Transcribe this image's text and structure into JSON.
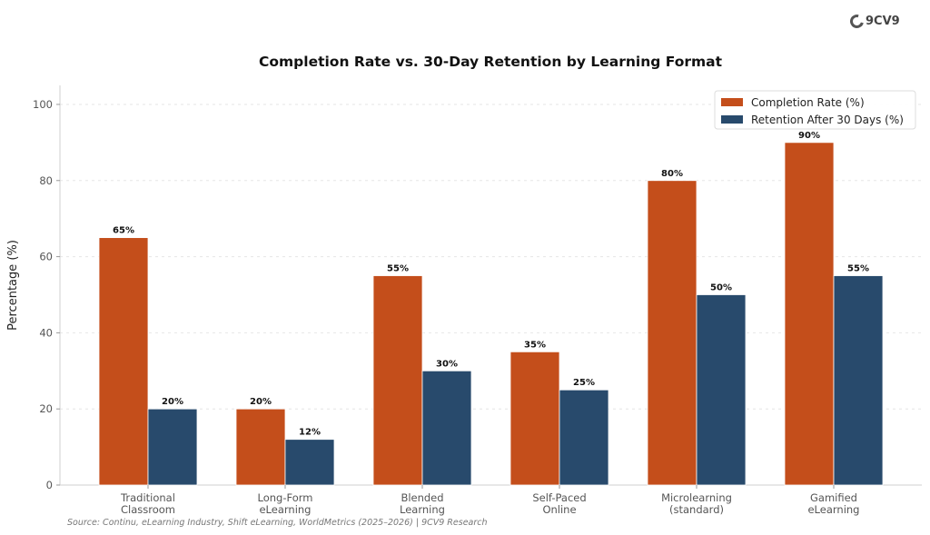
{
  "brand": {
    "name": "9CV9"
  },
  "source": "Source: Continu, eLearning Industry, Shift eLearning, WorldMetrics (2025–2026) | 9CV9 Research",
  "chart_data": {
    "type": "bar",
    "title": "Completion Rate vs. 30-Day Retention by Learning Format",
    "xlabel": "",
    "ylabel": "Percentage (%)",
    "ylim": [
      0,
      105
    ],
    "yticks": [
      0,
      20,
      40,
      60,
      80,
      100
    ],
    "grid": true,
    "legend_position": "top-right",
    "categories": [
      [
        "Traditional",
        "Classroom"
      ],
      [
        "Long-Form",
        "eLearning"
      ],
      [
        "Blended",
        "Learning"
      ],
      [
        "Self-Paced",
        "Online"
      ],
      [
        "Microlearning",
        "(standard)"
      ],
      [
        "Gamified",
        "eLearning"
      ]
    ],
    "series": [
      {
        "name": "Completion Rate (%)",
        "color": "#c44e1b",
        "values": [
          65,
          20,
          55,
          35,
          80,
          90
        ],
        "labels": [
          "65%",
          "20%",
          "55%",
          "35%",
          "80%",
          "90%"
        ]
      },
      {
        "name": "Retention After 30 Days (%)",
        "color": "#284a6c",
        "values": [
          20,
          12,
          30,
          25,
          50,
          55
        ],
        "labels": [
          "20%",
          "12%",
          "30%",
          "25%",
          "50%",
          "55%"
        ]
      }
    ]
  }
}
